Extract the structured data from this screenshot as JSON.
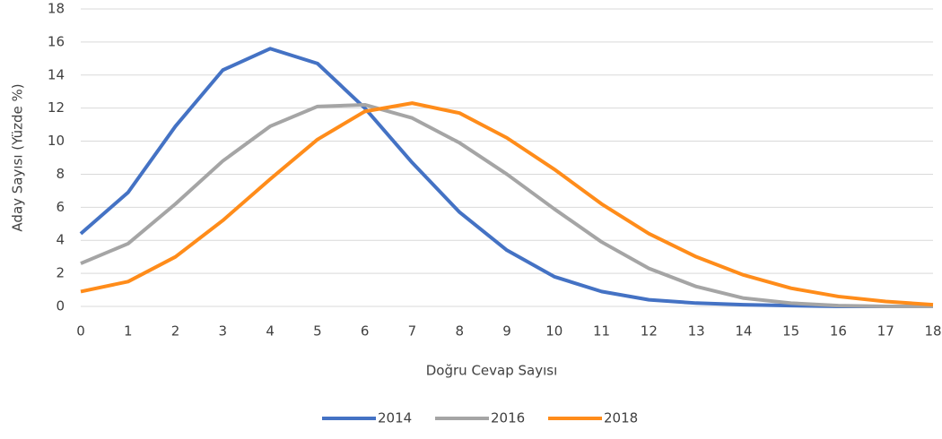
{
  "chart_data": {
    "type": "line",
    "x": [
      0,
      1,
      2,
      3,
      4,
      5,
      6,
      7,
      8,
      9,
      10,
      11,
      12,
      13,
      14,
      15,
      16,
      17,
      18
    ],
    "xlim": [
      0,
      18
    ],
    "xticks": [
      0,
      1,
      2,
      3,
      4,
      5,
      6,
      7,
      8,
      9,
      10,
      11,
      12,
      13,
      14,
      15,
      16,
      17,
      18
    ],
    "ylim": [
      0,
      18
    ],
    "yticks": [
      0,
      2,
      4,
      6,
      8,
      10,
      12,
      14,
      16,
      18
    ],
    "x_label": "Doğru Cevap Sayısı",
    "y_label": "Aday Sayısı (Yüzde %)",
    "grid": true,
    "legend": "bottom",
    "series": [
      {
        "name": "2014",
        "color": "#4472c4",
        "values": [
          4.4,
          6.9,
          10.9,
          14.3,
          15.6,
          14.7,
          12.0,
          8.7,
          5.7,
          3.4,
          1.8,
          0.9,
          0.4,
          0.2,
          0.1,
          0.05,
          0,
          0,
          0
        ]
      },
      {
        "name": "2016",
        "color": "#a5a5a5",
        "values": [
          2.6,
          3.8,
          6.2,
          8.8,
          10.9,
          12.1,
          12.2,
          11.4,
          9.9,
          8.0,
          5.9,
          3.9,
          2.3,
          1.2,
          0.5,
          0.2,
          0.05,
          0,
          0
        ]
      },
      {
        "name": "2018",
        "color": "#ff8c1a",
        "values": [
          0.9,
          1.5,
          3.0,
          5.2,
          7.7,
          10.1,
          11.8,
          12.3,
          11.7,
          10.2,
          8.3,
          6.2,
          4.4,
          3.0,
          1.9,
          1.1,
          0.6,
          0.3,
          0.1
        ]
      }
    ]
  }
}
